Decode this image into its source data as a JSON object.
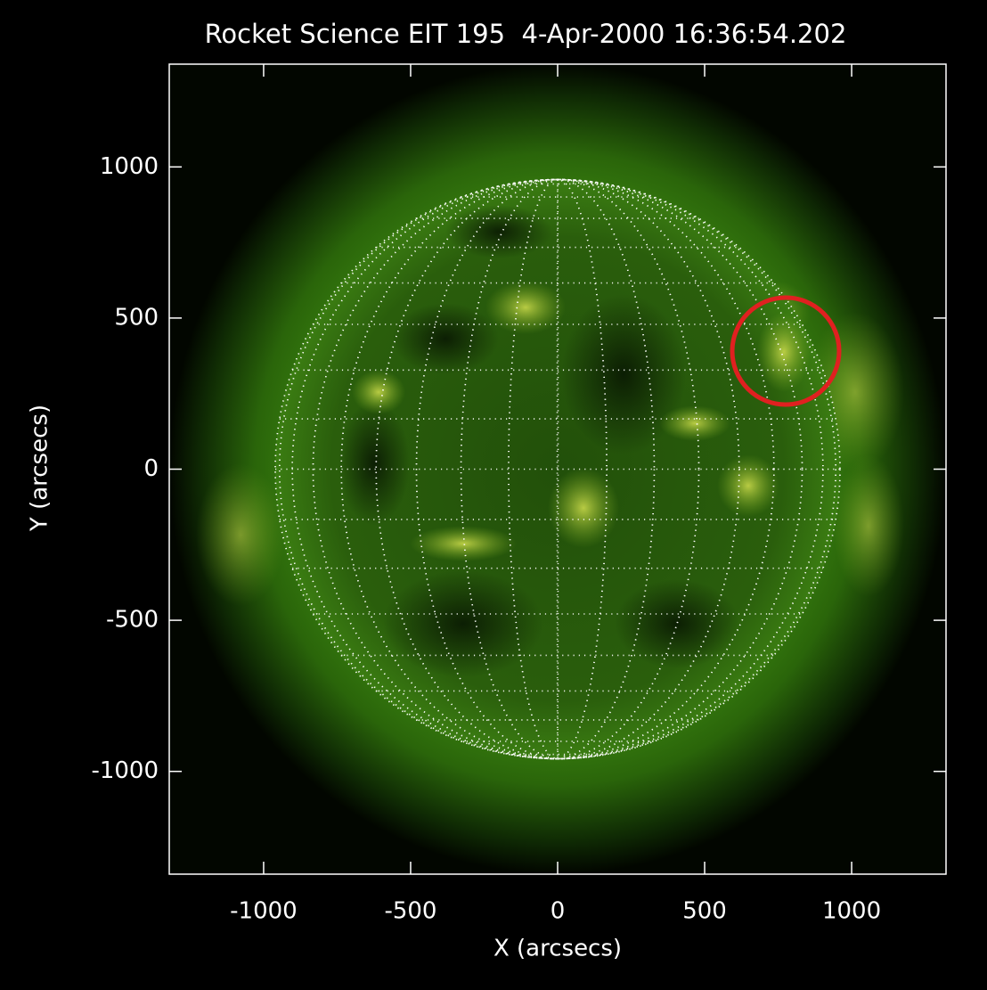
{
  "chart_data": {
    "type": "image",
    "title": "Rocket Science EIT 195  4-Apr-2000 16:36:54.202",
    "x_label": "X (arcsecs)",
    "y_label": "Y (arcsecs)",
    "xlim": [
      -1321,
      1321
    ],
    "ylim": [
      -1340,
      1340
    ],
    "xticks": [
      -1000,
      -500,
      0,
      500,
      1000
    ],
    "yticks": [
      -1000,
      -500,
      0,
      500,
      1000
    ]
  }
}
